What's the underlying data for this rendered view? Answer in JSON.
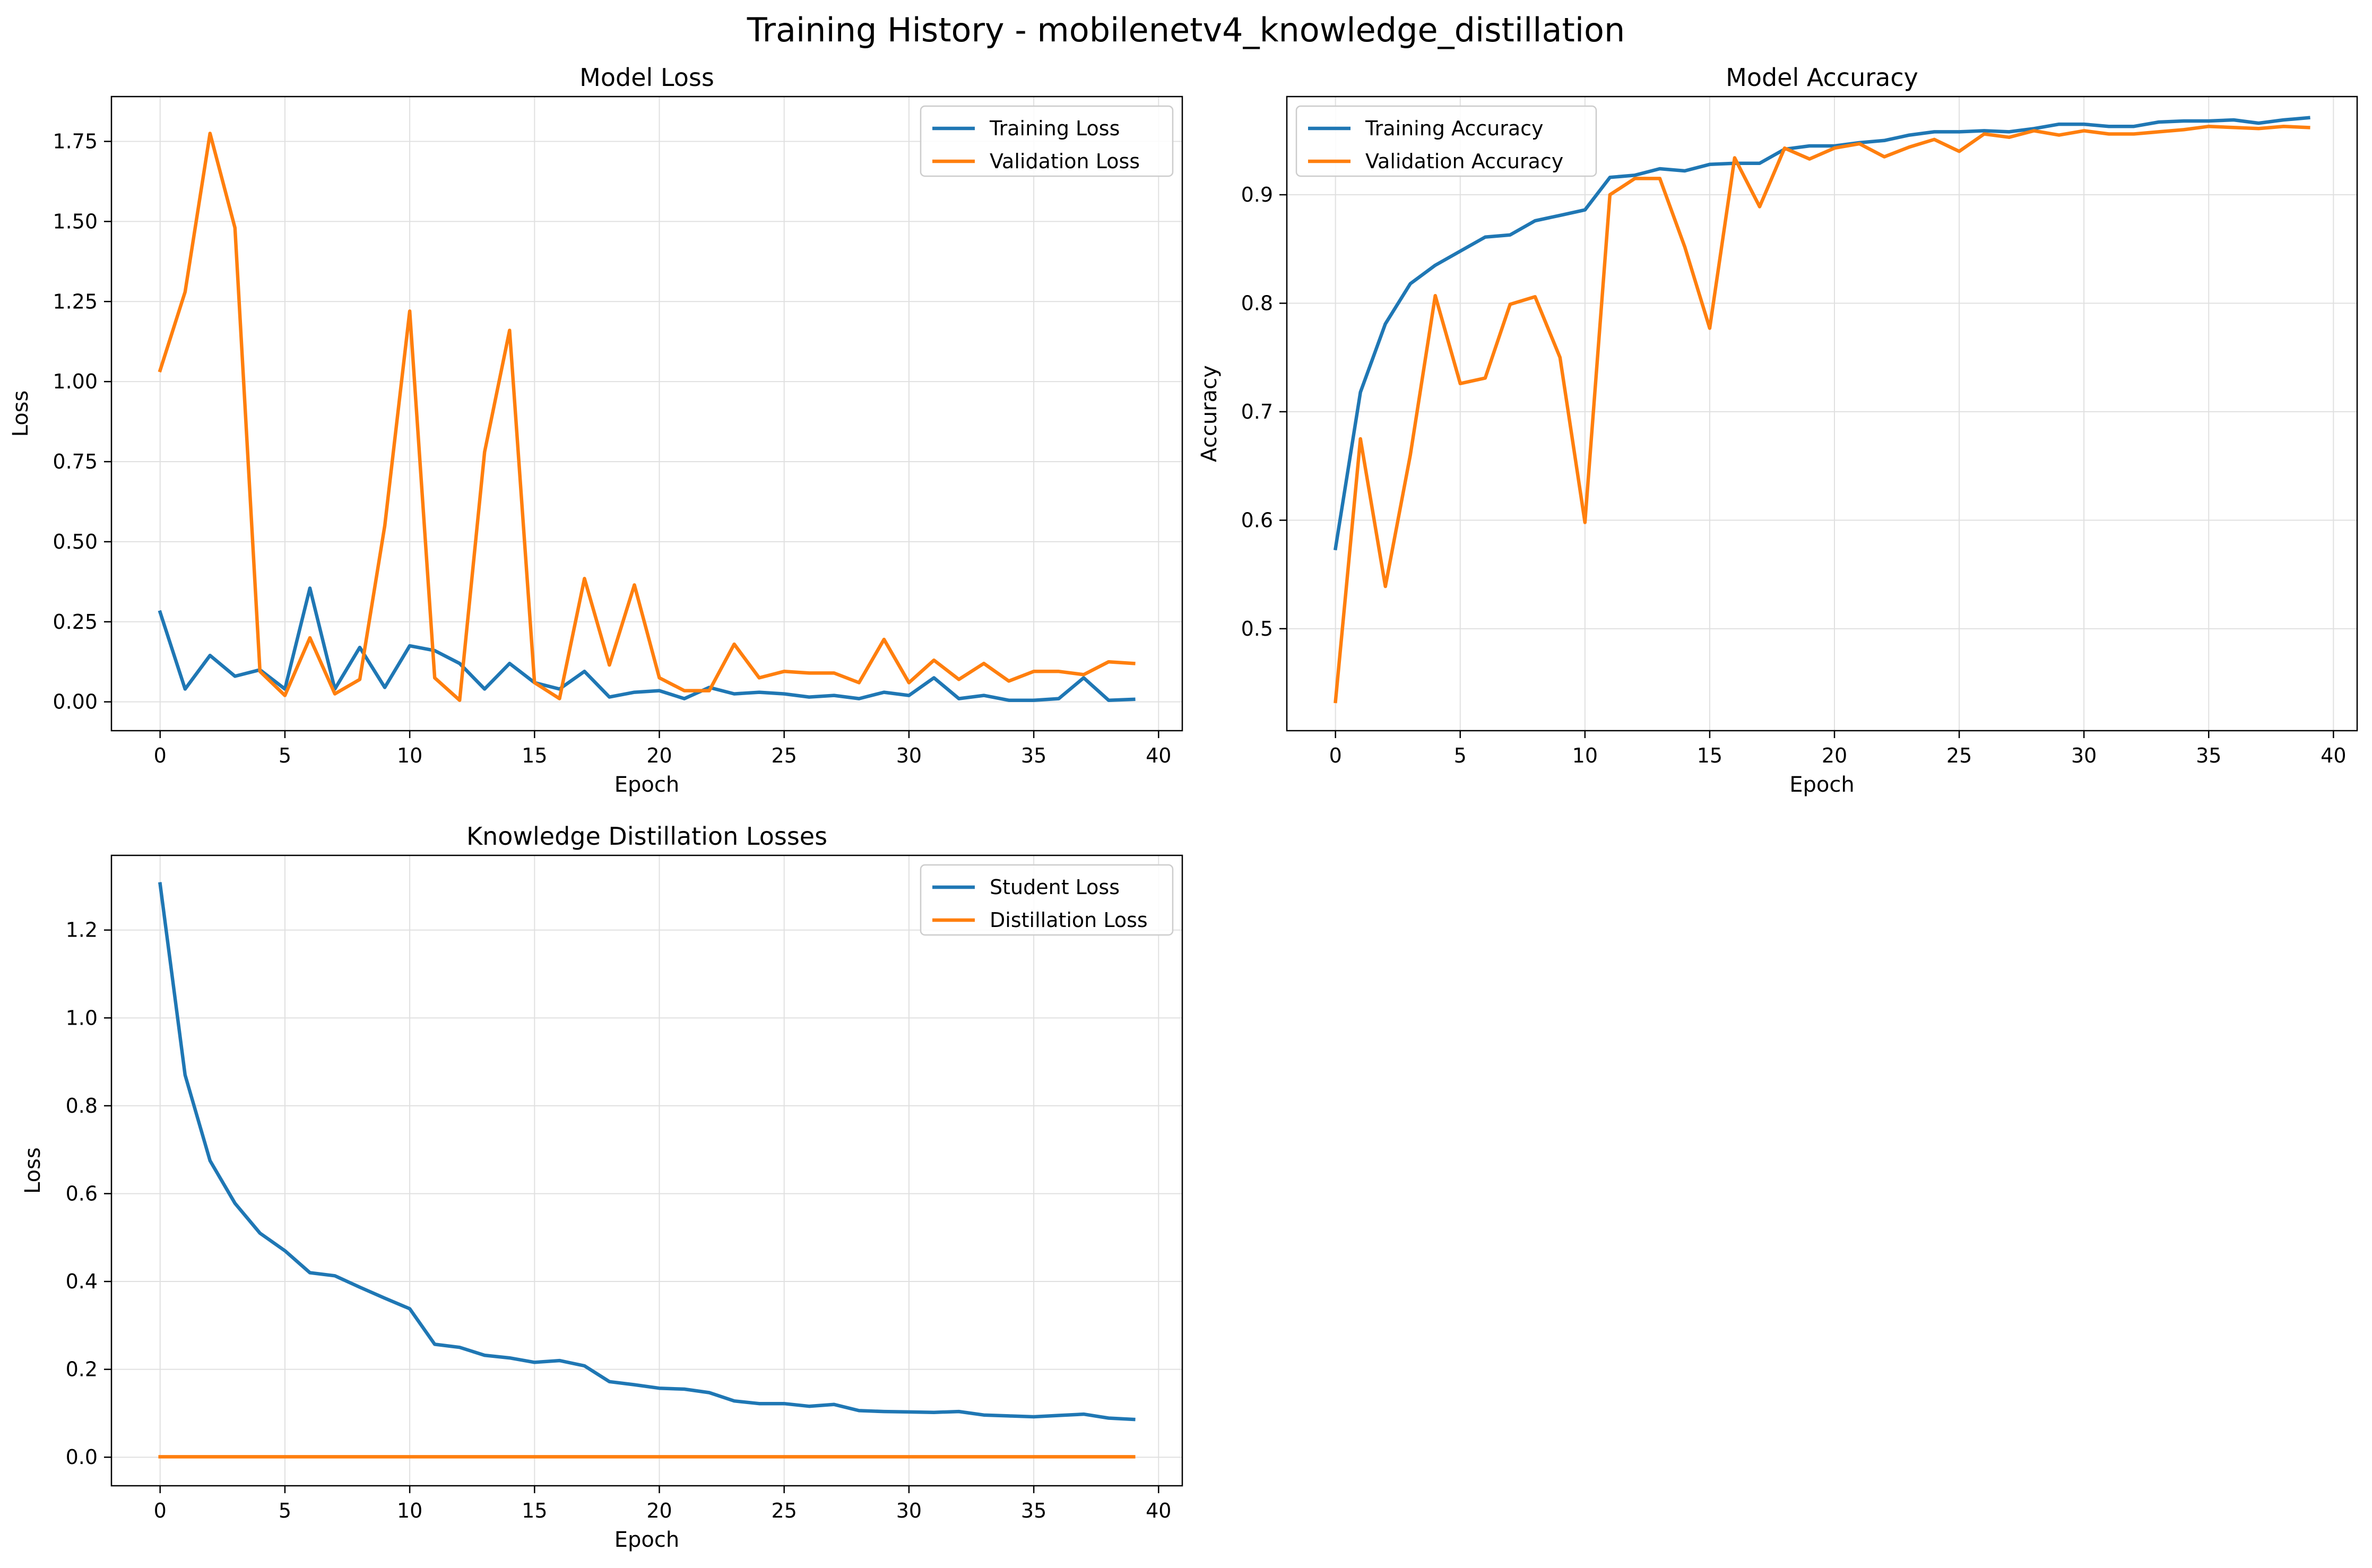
{
  "figure": {
    "title": "Training History - mobilenetv4_knowledge_distillation"
  },
  "colors": {
    "blue": "#1f77b4",
    "orange": "#ff7f0e",
    "grid": "#e0e0e0"
  },
  "chart_data": [
    {
      "id": "loss",
      "type": "line",
      "title": "Model Loss",
      "xlabel": "Epoch",
      "ylabel": "Loss",
      "xlim": [
        -1.95,
        40.95
      ],
      "ylim": [
        -0.09,
        1.89
      ],
      "xticks": [
        0,
        5,
        10,
        15,
        20,
        25,
        30,
        35,
        40
      ],
      "yticks": [
        0.0,
        0.25,
        0.5,
        0.75,
        1.0,
        1.25,
        1.5,
        1.75
      ],
      "ytick_labels": [
        "0.00",
        "0.25",
        "0.50",
        "0.75",
        "1.00",
        "1.25",
        "1.50",
        "1.75"
      ],
      "grid": true,
      "legend": "upper right",
      "series": [
        {
          "name": "Training Loss",
          "color": "#1f77b4",
          "values": [
            0.28,
            0.04,
            0.145,
            0.08,
            0.1,
            0.04,
            0.355,
            0.04,
            0.17,
            0.045,
            0.175,
            0.16,
            0.12,
            0.04,
            0.12,
            0.06,
            0.04,
            0.095,
            0.015,
            0.03,
            0.035,
            0.01,
            0.045,
            0.025,
            0.03,
            0.025,
            0.015,
            0.02,
            0.01,
            0.03,
            0.02,
            0.075,
            0.01,
            0.02,
            0.005,
            0.005,
            0.01,
            0.075,
            0.005,
            0.008
          ]
        },
        {
          "name": "Validation Loss",
          "color": "#ff7f0e",
          "values": [
            1.035,
            1.28,
            1.775,
            1.48,
            0.095,
            0.02,
            0.2,
            0.025,
            0.07,
            0.55,
            1.22,
            0.075,
            0.005,
            0.78,
            1.16,
            0.06,
            0.01,
            0.385,
            0.115,
            0.365,
            0.075,
            0.035,
            0.035,
            0.18,
            0.075,
            0.095,
            0.09,
            0.09,
            0.06,
            0.195,
            0.06,
            0.13,
            0.07,
            0.12,
            0.065,
            0.095,
            0.095,
            0.085,
            0.125,
            0.12
          ]
        }
      ]
    },
    {
      "id": "accuracy",
      "type": "line",
      "title": "Model Accuracy",
      "xlabel": "Epoch",
      "ylabel": "Accuracy",
      "xlim": [
        -1.95,
        40.95
      ],
      "ylim": [
        0.406,
        0.9905
      ],
      "xticks": [
        0,
        5,
        10,
        15,
        20,
        25,
        30,
        35,
        40
      ],
      "yticks": [
        0.5,
        0.6,
        0.7,
        0.8,
        0.9
      ],
      "ytick_labels": [
        "0.5",
        "0.6",
        "0.7",
        "0.8",
        "0.9"
      ],
      "grid": true,
      "legend": "upper left",
      "series": [
        {
          "name": "Training Accuracy",
          "color": "#1f77b4",
          "values": [
            0.574,
            0.718,
            0.781,
            0.818,
            0.835,
            0.848,
            0.861,
            0.863,
            0.876,
            0.881,
            0.886,
            0.916,
            0.918,
            0.924,
            0.922,
            0.928,
            0.929,
            0.929,
            0.942,
            0.945,
            0.945,
            0.948,
            0.95,
            0.955,
            0.958,
            0.958,
            0.959,
            0.958,
            0.961,
            0.965,
            0.965,
            0.963,
            0.963,
            0.967,
            0.968,
            0.968,
            0.969,
            0.966,
            0.969,
            0.971
          ]
        },
        {
          "name": "Validation Accuracy",
          "color": "#ff7f0e",
          "values": [
            0.433,
            0.675,
            0.539,
            0.66,
            0.807,
            0.726,
            0.731,
            0.799,
            0.806,
            0.75,
            0.598,
            0.9,
            0.915,
            0.915,
            0.852,
            0.777,
            0.934,
            0.889,
            0.943,
            0.933,
            0.943,
            0.947,
            0.935,
            0.944,
            0.951,
            0.94,
            0.956,
            0.953,
            0.959,
            0.955,
            0.959,
            0.956,
            0.956,
            0.958,
            0.96,
            0.963,
            0.962,
            0.961,
            0.963,
            0.962
          ]
        }
      ]
    },
    {
      "id": "kd",
      "type": "line",
      "title": "Knowledge Distillation Losses",
      "xlabel": "Epoch",
      "ylabel": "Loss",
      "xlim": [
        -1.95,
        40.95
      ],
      "ylim": [
        -0.065,
        1.37
      ],
      "xticks": [
        0,
        5,
        10,
        15,
        20,
        25,
        30,
        35,
        40
      ],
      "yticks": [
        0.0,
        0.2,
        0.4,
        0.6,
        0.8,
        1.0,
        1.2
      ],
      "ytick_labels": [
        "0.0",
        "0.2",
        "0.4",
        "0.6",
        "0.8",
        "1.0",
        "1.2"
      ],
      "grid": true,
      "legend": "upper right",
      "series": [
        {
          "name": "Student Loss",
          "color": "#1f77b4",
          "values": [
            1.305,
            0.87,
            0.675,
            0.578,
            0.51,
            0.47,
            0.42,
            0.413,
            0.387,
            0.362,
            0.338,
            0.257,
            0.25,
            0.232,
            0.226,
            0.216,
            0.22,
            0.208,
            0.172,
            0.165,
            0.157,
            0.155,
            0.147,
            0.128,
            0.122,
            0.122,
            0.116,
            0.12,
            0.106,
            0.104,
            0.103,
            0.102,
            0.104,
            0.096,
            0.094,
            0.092,
            0.095,
            0.098,
            0.089,
            0.086
          ]
        },
        {
          "name": "Distillation Loss",
          "color": "#ff7f0e",
          "values": [
            0.001,
            0.001,
            0.001,
            0.001,
            0.001,
            0.001,
            0.001,
            0.001,
            0.001,
            0.001,
            0.001,
            0.001,
            0.001,
            0.001,
            0.001,
            0.001,
            0.001,
            0.001,
            0.001,
            0.001,
            0.001,
            0.001,
            0.001,
            0.001,
            0.001,
            0.001,
            0.001,
            0.001,
            0.001,
            0.001,
            0.001,
            0.001,
            0.001,
            0.001,
            0.001,
            0.001,
            0.001,
            0.001,
            0.001,
            0.001
          ]
        }
      ]
    }
  ]
}
